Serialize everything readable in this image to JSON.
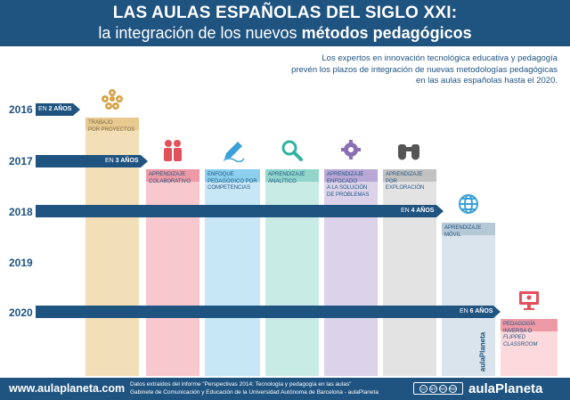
{
  "header": {
    "title_line1": "LAS AULAS ESPAÑOLAS DEL SIGLO XXI:",
    "title_line2_prefix": "la integración de los nuevos ",
    "title_line2_bold": "métodos pedagógicos"
  },
  "intro": {
    "line1": "Los expertos en innovación tecnológica educativa y pedagogía",
    "line2": "prevén los plazos de integración de nuevas metodologías pedagógicas",
    "line3": "en las aulas españolas hasta el 2020."
  },
  "timeline": {
    "years": [
      "2016",
      "2017",
      "2018",
      "2019",
      "2020"
    ],
    "arrows": [
      {
        "prefix": "EN ",
        "bold": "2 AÑOS"
      },
      {
        "prefix": "EN ",
        "bold": "3 AÑOS"
      },
      {
        "prefix": "EN ",
        "bold": "4 AÑOS"
      },
      {
        "prefix": "EN ",
        "bold": "6 AÑOS"
      }
    ]
  },
  "columns": [
    {
      "label": "TRABAJO\nPOR PROYECTOS",
      "color": "#f2dfb8",
      "head": "#e8c98f",
      "icon": "gear-cluster-icon"
    },
    {
      "label": "APRENDIZAJE\nCOLABORATIVO",
      "color": "#f7c9cf",
      "head": "#ee9aa6",
      "icon": "people-icon"
    },
    {
      "label": "ENFOQUE\nPEDAGÓGICO POR\nCOMPETENCIAS",
      "color": "#c7e7f6",
      "head": "#8ccfee",
      "icon": "pencil-icon"
    },
    {
      "label": "APRENDIZAJE\nANALÍTICO",
      "color": "#c9ebe5",
      "head": "#92d6cb",
      "icon": "magnifier-icon"
    },
    {
      "label": "APRENDIZAJE\nENFOCADO\nA LA SOLUCIÓN\nDE PROBLEMAS",
      "color": "#dcd3ea",
      "head": "#b9a8d6",
      "icon": "brain-gear-icon"
    },
    {
      "label": "APRENDIZAJE\nPOR EXPLORACIÓN",
      "color": "#e3e3e3",
      "head": "#c2c2c2",
      "icon": "binoculars-icon"
    },
    {
      "label": "APRENDIZAJE\nMÓVIL",
      "color": "#d9e4ec",
      "head": "#b5c8d6",
      "icon": "globe-icon"
    },
    {
      "label_prefix": "PEDAGOGÍA\nINVERSA O\n",
      "label_italic": "FLIPPED\nCLASSROOM",
      "color": "#fbd9dc",
      "head": "#ee9aa6",
      "icon": "monitor-icon"
    }
  ],
  "footer": {
    "url": "www.aulaplaneta.com",
    "source_line1": "Datos extraídos del informe \"Perspectivas 2014: Tecnología y pedagogía en las aulas\"",
    "source_line2": "Gabinete de Comunicación y Educación de la Universidad Autónoma de Barcelona - aulaPlaneta",
    "cc_badges": [
      "cc",
      "BY",
      "NC",
      "ND"
    ],
    "brand": "aulaPlaneta"
  },
  "side_brand": "aulaPlaneta",
  "colors": {
    "navy": "#1f5380",
    "icon_red": "#e2505c",
    "icon_blue": "#3aa0d8",
    "icon_teal": "#2fb3a0",
    "icon_purple": "#8a6fb3",
    "icon_gold": "#d6a44a",
    "icon_gray": "#555555"
  }
}
